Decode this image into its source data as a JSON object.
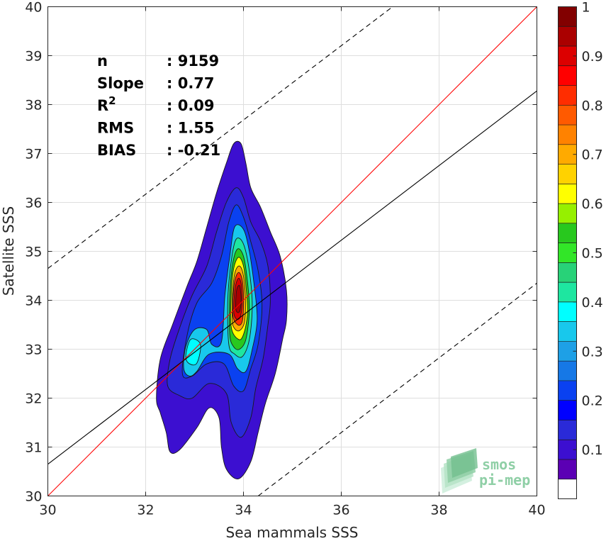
{
  "chart_data": {
    "type": "heatmap",
    "subtype": "normalized density contour (filled)",
    "xlabel": "Sea mammals SSS",
    "ylabel": "Satellite SSS",
    "xlim": [
      30,
      40
    ],
    "ylim": [
      30,
      40
    ],
    "x_ticks": [
      "30",
      "32",
      "34",
      "36",
      "38",
      "40"
    ],
    "y_ticks": [
      "30",
      "31",
      "32",
      "33",
      "34",
      "35",
      "36",
      "37",
      "38",
      "39",
      "40"
    ],
    "grid": true,
    "stats": [
      {
        "label": "n",
        "value": ": 9159"
      },
      {
        "label": "Slope",
        "value": ": 0.77"
      },
      {
        "label": "R",
        "sup": "2",
        "value": ": 0.09"
      },
      {
        "label": "RMS",
        "value": ": 1.55"
      },
      {
        "label": "BIAS",
        "value": ": -0.21"
      }
    ],
    "lines": [
      {
        "name": "identity",
        "color": "#ff0000",
        "style": "solid",
        "points": [
          [
            30,
            30
          ],
          [
            40,
            40
          ]
        ]
      },
      {
        "name": "regression",
        "color": "#000000",
        "style": "solid",
        "points": [
          [
            30,
            30.65
          ],
          [
            40,
            38.28
          ]
        ]
      },
      {
        "name": "upper bound",
        "color": "#000000",
        "style": "dashed",
        "points": [
          [
            30,
            34.65
          ],
          [
            37.05,
            40
          ]
        ]
      },
      {
        "name": "lower bound",
        "color": "#000000",
        "style": "dashed",
        "points": [
          [
            34.3,
            30
          ],
          [
            40,
            34.35
          ]
        ]
      }
    ],
    "density_peak": {
      "x": 33.9,
      "y": 34.1
    },
    "density_regions": [
      {
        "level": 0.05,
        "points": [
          [
            32.22,
            32.0
          ],
          [
            32.3,
            32.8
          ],
          [
            32.55,
            33.5
          ],
          [
            32.85,
            34.3
          ],
          [
            33.05,
            34.8
          ],
          [
            33.25,
            35.5
          ],
          [
            33.45,
            36.2
          ],
          [
            33.65,
            36.8
          ],
          [
            33.8,
            37.2
          ],
          [
            33.95,
            37.2
          ],
          [
            34.05,
            36.8
          ],
          [
            34.15,
            36.3
          ],
          [
            34.35,
            35.9
          ],
          [
            34.55,
            35.4
          ],
          [
            34.75,
            34.9
          ],
          [
            34.88,
            34.2
          ],
          [
            34.88,
            33.6
          ],
          [
            34.8,
            33.2
          ],
          [
            34.65,
            32.5
          ],
          [
            34.45,
            31.9
          ],
          [
            34.3,
            31.3
          ],
          [
            34.15,
            30.7
          ],
          [
            33.9,
            30.35
          ],
          [
            33.65,
            30.55
          ],
          [
            33.55,
            31.0
          ],
          [
            33.5,
            31.6
          ],
          [
            33.3,
            31.8
          ],
          [
            33.05,
            31.4
          ],
          [
            32.7,
            30.95
          ],
          [
            32.5,
            30.9
          ],
          [
            32.42,
            31.3
          ],
          [
            32.3,
            31.7
          ]
        ]
      },
      {
        "level": 0.1,
        "points": [
          [
            32.45,
            32.25
          ],
          [
            32.5,
            32.8
          ],
          [
            32.7,
            33.45
          ],
          [
            32.95,
            34.1
          ],
          [
            33.25,
            34.7
          ],
          [
            33.45,
            35.4
          ],
          [
            33.65,
            36.0
          ],
          [
            33.85,
            36.3
          ],
          [
            34.0,
            36.1
          ],
          [
            34.15,
            35.6
          ],
          [
            34.35,
            35.2
          ],
          [
            34.5,
            34.7
          ],
          [
            34.55,
            34.0
          ],
          [
            34.5,
            33.5
          ],
          [
            34.4,
            32.8
          ],
          [
            34.25,
            32.2
          ],
          [
            34.15,
            31.6
          ],
          [
            33.95,
            31.2
          ],
          [
            33.75,
            31.5
          ],
          [
            33.65,
            32.1
          ],
          [
            33.3,
            32.3
          ],
          [
            32.95,
            32.0
          ],
          [
            32.7,
            32.05
          ]
        ]
      },
      {
        "level": 0.2,
        "points": [
          [
            32.75,
            32.5
          ],
          [
            32.85,
            33.3
          ],
          [
            33.05,
            33.95
          ],
          [
            33.35,
            34.35
          ],
          [
            33.55,
            34.9
          ],
          [
            33.7,
            35.6
          ],
          [
            33.85,
            35.95
          ],
          [
            34.0,
            35.7
          ],
          [
            34.15,
            35.2
          ],
          [
            34.3,
            34.6
          ],
          [
            34.38,
            33.9
          ],
          [
            34.3,
            33.1
          ],
          [
            34.15,
            32.6
          ],
          [
            34.0,
            32.15
          ],
          [
            33.8,
            32.25
          ],
          [
            33.6,
            32.7
          ],
          [
            33.25,
            32.7
          ],
          [
            32.95,
            32.45
          ]
        ]
      },
      {
        "level": 0.3,
        "points": [
          [
            32.78,
            32.6
          ],
          [
            32.82,
            33.05
          ],
          [
            33.0,
            33.4
          ],
          [
            33.25,
            33.4
          ],
          [
            33.35,
            33.1
          ],
          [
            33.55,
            33.15
          ],
          [
            33.62,
            34.1
          ],
          [
            33.72,
            34.9
          ],
          [
            33.82,
            35.5
          ],
          [
            34.0,
            35.45
          ],
          [
            34.12,
            35.0
          ],
          [
            34.22,
            34.3
          ],
          [
            34.28,
            33.6
          ],
          [
            34.18,
            33.0
          ],
          [
            34.05,
            32.55
          ],
          [
            33.88,
            32.6
          ],
          [
            33.7,
            32.9
          ],
          [
            33.3,
            32.9
          ],
          [
            33.05,
            32.55
          ],
          [
            32.9,
            32.45
          ]
        ]
      },
      {
        "level": 0.35,
        "points": [
          [
            32.82,
            32.85
          ],
          [
            32.92,
            33.2
          ],
          [
            33.12,
            33.1
          ],
          [
            33.05,
            32.72
          ],
          [
            32.9,
            32.7
          ]
        ]
      },
      {
        "level": 0.4,
        "points": [
          [
            33.7,
            33.1
          ],
          [
            33.68,
            34.0
          ],
          [
            33.75,
            34.8
          ],
          [
            33.85,
            35.25
          ],
          [
            34.0,
            35.15
          ],
          [
            34.12,
            34.6
          ],
          [
            34.18,
            33.9
          ],
          [
            34.12,
            33.2
          ],
          [
            33.98,
            32.85
          ],
          [
            33.82,
            32.9
          ]
        ]
      },
      {
        "level": 0.5,
        "points": [
          [
            33.72,
            33.3
          ],
          [
            33.72,
            34.1
          ],
          [
            33.78,
            34.75
          ],
          [
            33.88,
            35.05
          ],
          [
            34.0,
            34.9
          ],
          [
            34.08,
            34.4
          ],
          [
            34.12,
            33.8
          ],
          [
            34.05,
            33.2
          ],
          [
            33.92,
            33.0
          ],
          [
            33.8,
            33.05
          ]
        ]
      },
      {
        "level": 0.6,
        "points": [
          [
            33.75,
            33.45
          ],
          [
            33.75,
            34.15
          ],
          [
            33.8,
            34.65
          ],
          [
            33.9,
            34.88
          ],
          [
            34.0,
            34.7
          ],
          [
            34.06,
            34.2
          ],
          [
            34.08,
            33.7
          ],
          [
            34.0,
            33.3
          ],
          [
            33.9,
            33.2
          ]
        ]
      },
      {
        "level": 0.7,
        "points": [
          [
            33.77,
            33.6
          ],
          [
            33.78,
            34.2
          ],
          [
            33.83,
            34.58
          ],
          [
            33.92,
            34.7
          ],
          [
            34.0,
            34.5
          ],
          [
            34.04,
            34.0
          ],
          [
            34.02,
            33.55
          ],
          [
            33.92,
            33.38
          ],
          [
            33.82,
            33.42
          ]
        ]
      },
      {
        "level": 0.8,
        "points": [
          [
            33.78,
            33.7
          ],
          [
            33.8,
            34.25
          ],
          [
            33.86,
            34.52
          ],
          [
            33.93,
            34.55
          ],
          [
            33.99,
            34.3
          ],
          [
            34.0,
            33.85
          ],
          [
            33.97,
            33.55
          ],
          [
            33.88,
            33.5
          ]
        ]
      },
      {
        "level": 0.9,
        "points": [
          [
            33.8,
            33.78
          ],
          [
            33.83,
            34.25
          ],
          [
            33.9,
            34.45
          ],
          [
            33.96,
            34.3
          ],
          [
            33.97,
            33.9
          ],
          [
            33.93,
            33.65
          ],
          [
            33.85,
            33.62
          ]
        ]
      },
      {
        "level": 0.95,
        "points": [
          [
            33.84,
            33.85
          ],
          [
            33.86,
            34.2
          ],
          [
            33.92,
            34.3
          ],
          [
            33.95,
            34.05
          ],
          [
            33.93,
            33.8
          ],
          [
            33.88,
            33.75
          ]
        ]
      }
    ],
    "colorbar": {
      "range": [
        0,
        1
      ],
      "ticks": [
        "0.1",
        "0.2",
        "0.3",
        "0.4",
        "0.5",
        "0.6",
        "0.7",
        "0.8",
        "0.9",
        "1"
      ],
      "colors": [
        "#ffffff",
        "#5b00b4",
        "#3c0fd0",
        "#2a2ad8",
        "#0000ff",
        "#0a41f0",
        "#1678e6",
        "#1ea0e6",
        "#18c8ec",
        "#00ffff",
        "#1ee6a0",
        "#28d278",
        "#32e628",
        "#28c81e",
        "#96f000",
        "#ffff00",
        "#ffd200",
        "#ffaa00",
        "#ff8200",
        "#ff5a00",
        "#ff2d00",
        "#ff0000",
        "#dc0000",
        "#aa0000",
        "#820000"
      ]
    }
  },
  "logo": {
    "line1": "smos",
    "line2": "pi-mep",
    "color": "#8fcfa6"
  }
}
